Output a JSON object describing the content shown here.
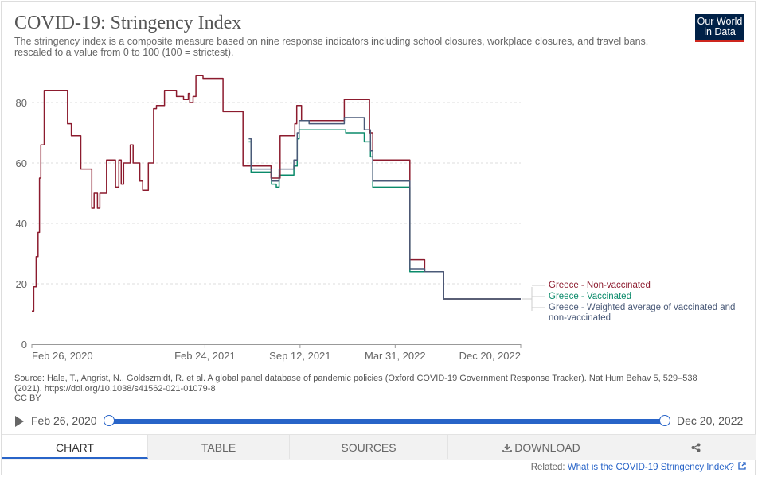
{
  "header": {
    "title": "COVID-19: Stringency Index",
    "subtitle": "The stringency index is a composite measure based on nine response indicators including school closures, workplace closures, and travel bans, rescaled to a value from 0 to 100 (100 = strictest).",
    "logo_line1": "Our World",
    "logo_line2": "in Data"
  },
  "source": {
    "text": "Source: Hale, T., Angrist, N., Goldszmidt, R. et al. A global panel database of pandemic policies (Oxford COVID-19 Government Response Tracker). Nat Hum Behav 5, 529–538 (2021). https://doi.org/10.1038/s41562-021-01079-8",
    "license": "CC BY"
  },
  "timeline": {
    "start": "Feb 26, 2020",
    "end": "Dec 20, 2022"
  },
  "tabs": [
    {
      "label": "Chart"
    },
    {
      "label": "Table"
    },
    {
      "label": "Sources"
    },
    {
      "label": "Download"
    },
    {
      "label": ""
    }
  ],
  "related": {
    "prefix": "Related:",
    "link": "What is the COVID-19 Stringency Index?"
  },
  "colors": {
    "non_vaccinated": "#8c1b2e",
    "vaccinated": "#0a8a6a",
    "weighted": "#4a5a78",
    "grid": "#dddddd",
    "accent": "#2864c8"
  },
  "icons": {
    "play": "play-icon",
    "download": "download-icon",
    "share": "share-icon",
    "external": "external-link-icon"
  },
  "chart_data": {
    "type": "line",
    "title": "COVID-19: Stringency Index",
    "x_axis": {
      "type": "date",
      "range": [
        "2020-02-26",
        "2022-12-20"
      ],
      "ticks": [
        {
          "date": "2020-02-26",
          "label": "Feb 26, 2020"
        },
        {
          "date": "2021-02-24",
          "label": "Feb 24, 2021"
        },
        {
          "date": "2021-09-12",
          "label": "Sep 12, 2021"
        },
        {
          "date": "2022-03-31",
          "label": "Mar 31, 2022"
        },
        {
          "date": "2022-12-20",
          "label": "Dec 20, 2022"
        }
      ]
    },
    "y_axis": {
      "range": [
        0,
        100
      ],
      "ticks": [
        0,
        20,
        40,
        60,
        80
      ]
    },
    "grid": "horizontal dashed",
    "legend": "right, labels at line ends",
    "series": [
      {
        "name": "Greece - Vaccinated",
        "color": "#0a8a6a",
        "points": [
          [
            "2021-05-27",
            67
          ],
          [
            "2021-06-01",
            57
          ],
          [
            "2021-07-01",
            57
          ],
          [
            "2021-07-14",
            53
          ],
          [
            "2021-07-24",
            52
          ],
          [
            "2021-07-30",
            56
          ],
          [
            "2021-08-30",
            59
          ],
          [
            "2021-09-06",
            68
          ],
          [
            "2021-09-10",
            71
          ],
          [
            "2021-12-14",
            71
          ],
          [
            "2021-12-17",
            70
          ],
          [
            "2022-01-22",
            70
          ],
          [
            "2022-01-25",
            67
          ],
          [
            "2022-02-07",
            62
          ],
          [
            "2022-02-12",
            52
          ],
          [
            "2022-04-25",
            52
          ],
          [
            "2022-05-01",
            24
          ],
          [
            "2022-05-31",
            24
          ],
          [
            "2022-06-01",
            24
          ],
          [
            "2022-07-09",
            24
          ],
          [
            "2022-07-11",
            15
          ],
          [
            "2022-12-20",
            15
          ]
        ]
      },
      {
        "name": "Greece - Non-vaccinated",
        "color": "#8c1b2e",
        "points": [
          [
            "2020-02-26",
            11
          ],
          [
            "2020-03-01",
            19
          ],
          [
            "2020-03-06",
            29
          ],
          [
            "2020-03-10",
            37
          ],
          [
            "2020-03-13",
            55
          ],
          [
            "2020-03-16",
            66
          ],
          [
            "2020-03-23",
            84
          ],
          [
            "2020-05-04",
            84
          ],
          [
            "2020-05-11",
            73
          ],
          [
            "2020-05-19",
            69
          ],
          [
            "2020-06-01",
            69
          ],
          [
            "2020-06-08",
            58
          ],
          [
            "2020-06-22",
            58
          ],
          [
            "2020-07-01",
            45
          ],
          [
            "2020-07-06",
            50
          ],
          [
            "2020-07-13",
            45
          ],
          [
            "2020-07-18",
            50
          ],
          [
            "2020-07-27",
            50
          ],
          [
            "2020-08-01",
            61
          ],
          [
            "2020-08-15",
            61
          ],
          [
            "2020-08-20",
            52
          ],
          [
            "2020-08-27",
            61
          ],
          [
            "2020-09-01",
            53
          ],
          [
            "2020-09-06",
            60
          ],
          [
            "2020-09-15",
            60
          ],
          [
            "2020-09-20",
            66
          ],
          [
            "2020-09-26",
            60
          ],
          [
            "2020-10-02",
            60
          ],
          [
            "2020-10-10",
            54
          ],
          [
            "2020-10-16",
            51
          ],
          [
            "2020-10-22",
            51
          ],
          [
            "2020-10-28",
            60
          ],
          [
            "2020-11-08",
            78
          ],
          [
            "2020-11-14",
            79
          ],
          [
            "2020-12-01",
            84
          ],
          [
            "2020-12-18",
            84
          ],
          [
            "2020-12-26",
            82
          ],
          [
            "2021-01-10",
            81
          ],
          [
            "2021-01-18",
            81
          ],
          [
            "2021-01-20",
            83
          ],
          [
            "2021-01-23",
            80
          ],
          [
            "2021-01-30",
            82
          ],
          [
            "2021-02-05",
            89
          ],
          [
            "2021-02-20",
            88
          ],
          [
            "2021-03-20",
            88
          ],
          [
            "2021-04-03",
            77
          ],
          [
            "2021-04-24",
            77
          ],
          [
            "2021-05-15",
            59
          ],
          [
            "2021-07-05",
            59
          ],
          [
            "2021-07-13",
            55
          ],
          [
            "2021-07-22",
            55
          ],
          [
            "2021-08-01",
            69
          ],
          [
            "2021-08-28",
            69
          ],
          [
            "2021-09-01",
            73
          ],
          [
            "2021-09-05",
            79
          ],
          [
            "2021-09-15",
            74
          ],
          [
            "2021-10-01",
            74
          ],
          [
            "2021-12-01",
            74
          ],
          [
            "2021-12-14",
            81
          ],
          [
            "2022-01-25",
            81
          ],
          [
            "2022-02-05",
            70
          ],
          [
            "2022-02-12",
            61
          ],
          [
            "2022-04-26",
            61
          ],
          [
            "2022-05-01",
            28
          ],
          [
            "2022-05-31",
            28
          ],
          [
            "2022-06-01",
            24
          ],
          [
            "2022-07-09",
            24
          ],
          [
            "2022-07-11",
            15
          ],
          [
            "2022-12-20",
            15
          ]
        ]
      },
      {
        "name": "Greece - Weighted average of vaccinated and non-vaccinated",
        "color": "#4a5a78",
        "points": [
          [
            "2021-05-27",
            68
          ],
          [
            "2021-06-01",
            58
          ],
          [
            "2021-07-01",
            58
          ],
          [
            "2021-07-14",
            54
          ],
          [
            "2021-07-22",
            54
          ],
          [
            "2021-07-30",
            58
          ],
          [
            "2021-08-30",
            61
          ],
          [
            "2021-09-06",
            70
          ],
          [
            "2021-09-10",
            74
          ],
          [
            "2021-10-01",
            73
          ],
          [
            "2021-12-14",
            75
          ],
          [
            "2022-01-20",
            75
          ],
          [
            "2022-01-25",
            71
          ],
          [
            "2022-02-07",
            64
          ],
          [
            "2022-02-12",
            54
          ],
          [
            "2022-04-26",
            54
          ],
          [
            "2022-05-01",
            25
          ],
          [
            "2022-05-31",
            25
          ],
          [
            "2022-06-01",
            24
          ],
          [
            "2022-07-09",
            24
          ],
          [
            "2022-07-11",
            15
          ],
          [
            "2022-12-20",
            15
          ]
        ]
      }
    ],
    "legend_order": [
      "Greece - Non-vaccinated",
      "Greece - Vaccinated",
      "Greece - Weighted average of vaccinated and non-vaccinated"
    ]
  }
}
